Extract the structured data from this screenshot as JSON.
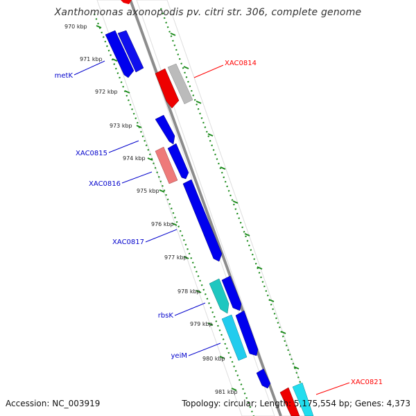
{
  "title": "Xanthomonas axonopodis pv. citri str. 306, complete genome",
  "footer": {
    "accession": "Accession: NC_003919",
    "summary": "Topology: circular; Length: 5,175,554 bp; Genes: 4,373"
  },
  "colors": {
    "backbone": "#8c8c8c",
    "tick": "#1a8a1a",
    "label_blue": "#0000cc",
    "label_red": "#ff0000",
    "blue": "#0000ee",
    "red": "#ee0000",
    "gray": "#b8b8b8",
    "pink": "#ee8080",
    "teal": "#20c4c0",
    "cyan": "#22ccee"
  },
  "kbp_labels": [
    "970 kbp",
    "971 kbp",
    "972 kbp",
    "973 kbp",
    "974 kbp",
    "975 kbp",
    "976 kbp",
    "977 kbp",
    "978 kbp",
    "979 kbp",
    "980 kbp",
    "981 kbp"
  ],
  "gene_labels": [
    {
      "name": "metK",
      "color": "blue"
    },
    {
      "name": "XAC0814",
      "color": "red"
    },
    {
      "name": "XAC0815",
      "color": "blue"
    },
    {
      "name": "XAC0816",
      "color": "blue"
    },
    {
      "name": "XAC0817",
      "color": "blue"
    },
    {
      "name": "rbsK",
      "color": "blue"
    },
    {
      "name": "yeiM",
      "color": "blue"
    },
    {
      "name": "XAC0821",
      "color": "red"
    }
  ]
}
